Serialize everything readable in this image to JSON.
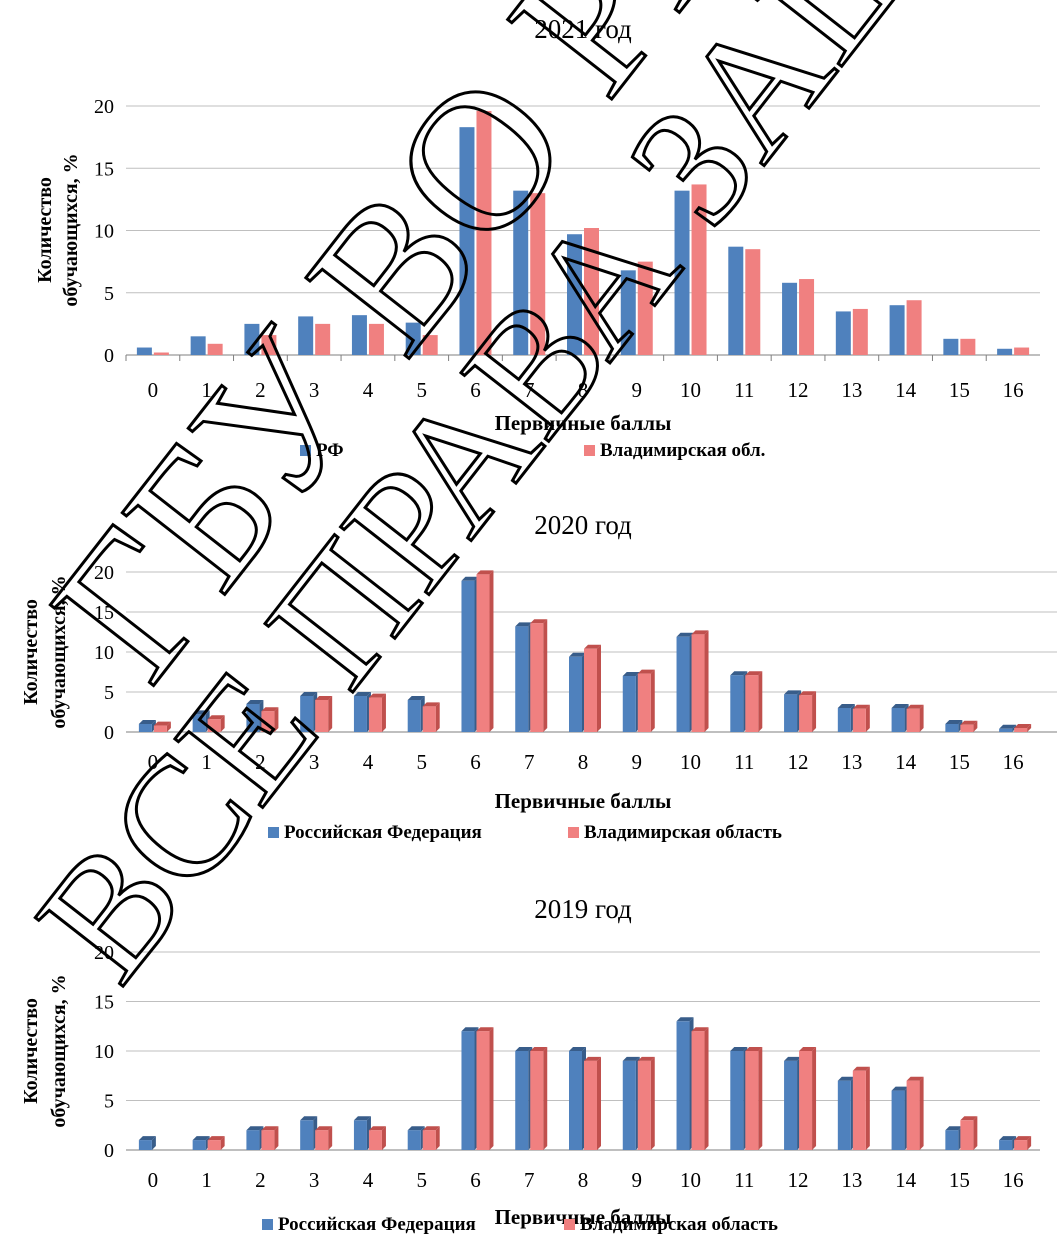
{
  "watermark": [
    "ГБУ ВО РЦОКО",
    "ВСЕ ПРАВА ЗАЩИЩЕНЫ"
  ],
  "page_heading": "",
  "colors": {
    "rf": "#4f81bd",
    "rf_dark": "#385d8a",
    "vlad": "#f08080",
    "vlad_dark": "#c0504d",
    "grid": "#bfbfbf",
    "axis": "#7f7f7f"
  },
  "chart_data": [
    {
      "type": "bar",
      "title": "2021 год",
      "xlabel": "Первичные баллы",
      "ylabel_lines": [
        "Количество",
        "обучающихся, %"
      ],
      "ylim": [
        0,
        20
      ],
      "yticks": [
        0,
        5,
        10,
        15,
        20
      ],
      "categories": [
        "0",
        "1",
        "2",
        "3",
        "4",
        "5",
        "6",
        "7",
        "8",
        "9",
        "10",
        "11",
        "12",
        "13",
        "14",
        "15",
        "16"
      ],
      "legend_position": "bottom",
      "style": "flat",
      "series": [
        {
          "name": "РФ",
          "color_key": "rf",
          "values": [
            0.6,
            1.5,
            2.5,
            3.1,
            3.2,
            2.6,
            18.3,
            13.2,
            9.7,
            6.8,
            13.2,
            8.7,
            5.8,
            3.5,
            4.0,
            1.3,
            0.5
          ]
        },
        {
          "name": "Владимирская обл.",
          "color_key": "vlad",
          "values": [
            0.2,
            0.9,
            1.6,
            2.5,
            2.5,
            1.6,
            19.6,
            13.0,
            10.2,
            7.5,
            13.7,
            8.5,
            6.1,
            3.7,
            4.4,
            1.3,
            0.6
          ]
        }
      ]
    },
    {
      "type": "bar",
      "title": "2020 год",
      "xlabel": "Первичные баллы",
      "ylabel_lines": [
        "Количество",
        "обучающихся, %"
      ],
      "ylim": [
        0,
        20
      ],
      "yticks": [
        0,
        5,
        10,
        15,
        20
      ],
      "categories": [
        "0",
        "1",
        "2",
        "3",
        "4",
        "5",
        "6",
        "7",
        "8",
        "9",
        "10",
        "11",
        "12",
        "13",
        "14",
        "15",
        "16"
      ],
      "legend_position": "bottom",
      "style": "3d",
      "series": [
        {
          "name": "Российская Федерация",
          "color_key": "rf",
          "values": [
            1.0,
            2.2,
            3.5,
            4.5,
            4.5,
            4.0,
            18.9,
            13.2,
            9.4,
            7.0,
            11.9,
            7.1,
            4.7,
            3.0,
            3.0,
            1.0,
            0.4
          ]
        },
        {
          "name": "Владимирская область",
          "color_key": "vlad",
          "values": [
            0.8,
            1.6,
            2.6,
            4.0,
            4.3,
            3.2,
            19.7,
            13.6,
            10.4,
            7.3,
            12.2,
            7.1,
            4.6,
            2.9,
            2.9,
            0.9,
            0.5
          ]
        }
      ]
    },
    {
      "type": "bar",
      "title": "2019 год",
      "xlabel": "Первичные баллы",
      "ylabel_lines": [
        "Количество",
        "обучающихся, %"
      ],
      "ylim": [
        0,
        20
      ],
      "yticks": [
        0,
        5,
        10,
        15,
        20
      ],
      "categories": [
        "0",
        "1",
        "2",
        "3",
        "4",
        "5",
        "6",
        "7",
        "8",
        "9",
        "10",
        "11",
        "12",
        "13",
        "14",
        "15",
        "16"
      ],
      "legend_position": "bottom",
      "style": "3d",
      "series": [
        {
          "name": "Российская Федерация",
          "color_key": "rf",
          "values": [
            1,
            1,
            2,
            3,
            3,
            2,
            12,
            10,
            10,
            9,
            13,
            10,
            9,
            7,
            6,
            2,
            1
          ]
        },
        {
          "name": "Владимирская область",
          "color_key": "vlad",
          "values": [
            0,
            1,
            2,
            2,
            2,
            2,
            12,
            10,
            9,
            9,
            12,
            10,
            10,
            8,
            7,
            3,
            1
          ]
        }
      ]
    }
  ]
}
